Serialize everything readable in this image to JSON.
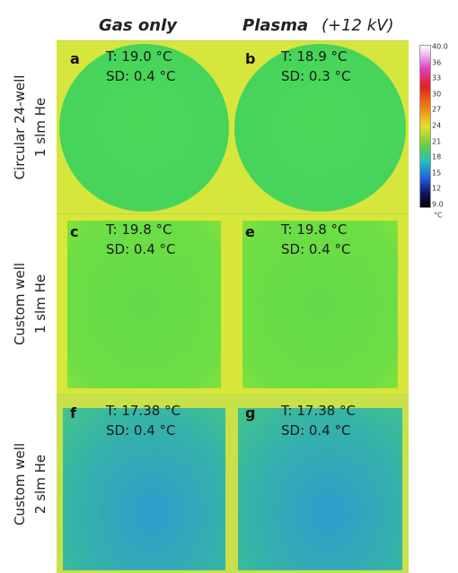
{
  "columns": [
    "Gas only",
    "Plasma",
    "(+12 kV)"
  ],
  "rows": [
    {
      "line1": "Circular 24-well",
      "line2": "1 slm He"
    },
    {
      "line1": "Custom well",
      "line2": "1 slm He"
    },
    {
      "line1": "Custom well",
      "line2": "2 slm He"
    }
  ],
  "panels": [
    {
      "letter": "a",
      "temp": "T: 19.0 °C",
      "sd": "SD: 0.4 °C"
    },
    {
      "letter": "b",
      "temp": "T: 18.9 °C",
      "sd": "SD: 0.3 °C"
    },
    {
      "letter": "c",
      "temp": "T: 19.8 °C",
      "sd": "SD: 0.4 °C"
    },
    {
      "letter": "e",
      "temp": "T: 19.8 °C",
      "sd": "SD: 0.4 °C"
    },
    {
      "letter": "f",
      "temp": "T: 17.38 °C",
      "sd": "SD: 0.4 °C"
    },
    {
      "letter": "g",
      "temp": "T: 17.38 °C",
      "sd": "SD: 0.4 °C"
    }
  ],
  "colorbar": {
    "ticks": [
      "40.0",
      "36",
      "33",
      "30",
      "27",
      "24",
      "21",
      "18",
      "15",
      "12",
      "9.0"
    ],
    "unit": "°C"
  }
}
